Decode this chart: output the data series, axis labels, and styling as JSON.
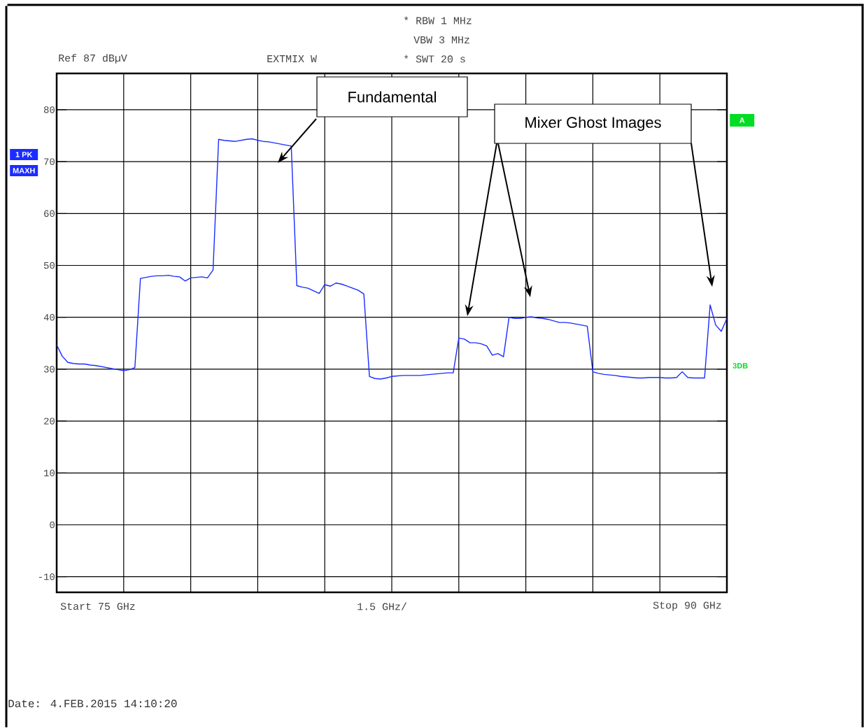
{
  "chart_data": {
    "type": "line",
    "categories": [
      null,
      null,
      null,
      null,
      null,
      null,
      null,
      null,
      null,
      null,
      null,
      null,
      null,
      null,
      null,
      null,
      null,
      null,
      null,
      null,
      null,
      null,
      null,
      null,
      null,
      null,
      null,
      null,
      null,
      null,
      null,
      null,
      null,
      null,
      null,
      null,
      null,
      null,
      null,
      null,
      null,
      null,
      null,
      null,
      null,
      null,
      null,
      null,
      null,
      null,
      null,
      null,
      null,
      null,
      null,
      null,
      null,
      null,
      null,
      null,
      null,
      null,
      null,
      null,
      null,
      null,
      null,
      null,
      null,
      null,
      null,
      null,
      null,
      null,
      null,
      null,
      null,
      null,
      null,
      null,
      null,
      null,
      null,
      null,
      null,
      null,
      null,
      null,
      null,
      null,
      null,
      null,
      null,
      null,
      null,
      null,
      null,
      null,
      null,
      null,
      null,
      null,
      null,
      null,
      null,
      null,
      null,
      null,
      null,
      null,
      null,
      null,
      null,
      null,
      null,
      null,
      null,
      null,
      null,
      null,
      null
    ],
    "values": [
      34.7,
      32.5,
      31.3,
      31.1,
      31.0,
      31.0,
      30.8,
      30.7,
      30.5,
      30.3,
      30.1,
      29.9,
      29.7,
      29.9,
      30.3,
      47.5,
      47.7,
      47.9,
      48.0,
      48.0,
      48.1,
      47.9,
      47.8,
      47.0,
      47.6,
      47.7,
      47.8,
      47.6,
      49.1,
      74.3,
      74.1,
      74.0,
      73.9,
      74.1,
      74.3,
      74.4,
      74.1,
      73.9,
      73.8,
      73.6,
      73.4,
      73.2,
      73.0,
      46.1,
      45.8,
      45.6,
      45.1,
      44.6,
      46.3,
      46.0,
      46.6,
      46.4,
      46.0,
      45.6,
      45.2,
      44.5,
      28.6,
      28.2,
      28.1,
      28.3,
      28.6,
      28.7,
      28.8,
      28.8,
      28.8,
      28.8,
      28.9,
      29.0,
      29.1,
      29.2,
      29.3,
      29.3,
      36.0,
      35.8,
      35.1,
      35.1,
      34.9,
      34.5,
      32.7,
      33.0,
      32.4,
      40.0,
      39.8,
      39.8,
      40.0,
      40.1,
      39.9,
      39.8,
      39.6,
      39.3,
      39.0,
      39.0,
      38.9,
      38.7,
      38.5,
      38.3,
      29.5,
      29.2,
      29.0,
      28.9,
      28.8,
      28.6,
      28.5,
      28.4,
      28.3,
      28.3,
      28.4,
      28.4,
      28.4,
      28.3,
      28.3,
      28.4,
      29.5,
      28.4,
      28.3,
      28.3,
      28.3,
      42.4,
      38.5,
      37.3,
      39.8
    ],
    "color": "#1a2cff",
    "ylim": [
      -13,
      87
    ],
    "yticks": [
      -10,
      0,
      10,
      20,
      30,
      40,
      50,
      60,
      70,
      80
    ],
    "tick_labels": "y",
    "grid": true,
    "marker": "none",
    "line_style": "solid",
    "annotations": [
      "* RBW 1 MHz",
      "VBW 3 MHz",
      "* SWT 20 s",
      "Ref 87 dBµV",
      "EXTMIX W",
      "1 PK",
      "MAXH",
      "A",
      "3DB",
      "Fundamental",
      "Mixer Ghost Images",
      "Start 75 GHz",
      "1.5 GHz/",
      "Stop 90 GHz",
      "Date: 4.FEB.2015 14:10:20"
    ]
  }
}
